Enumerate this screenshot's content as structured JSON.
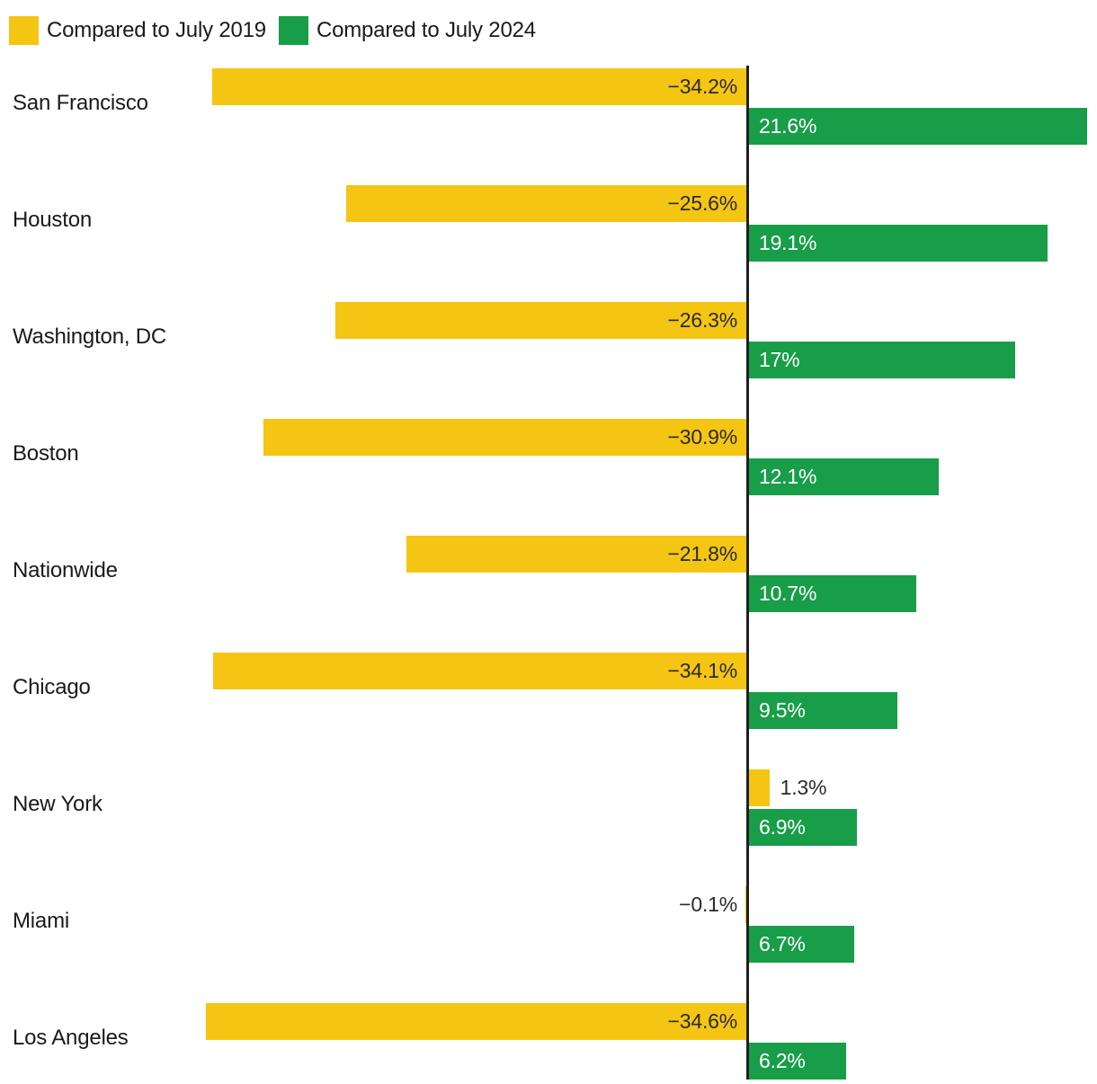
{
  "colors": {
    "yellow": "#F5C513",
    "green": "#189E48",
    "axis": "#1F1F1F",
    "city_text": "#1A1A1A",
    "value_dark": "#2B2B2B",
    "value_light": "#FFFFFF",
    "background": "#FFFFFF"
  },
  "chart_data": {
    "type": "bar",
    "orientation": "horizontal",
    "value_unit": "percent",
    "zero_axis_line": true,
    "legend_position": "top-left",
    "grid": false,
    "xlim": [
      -34.6,
      21.6
    ],
    "series": [
      {
        "name": "Compared to July 2019",
        "color": "#F5C513",
        "key": "jul2019"
      },
      {
        "name": "Compared to July 2024",
        "color": "#189E48",
        "key": "jul2024"
      }
    ],
    "categories": [
      "San Francisco",
      "Houston",
      "Washington, DC",
      "Boston",
      "Nationwide",
      "Chicago",
      "New York",
      "Miami",
      "Los Angeles"
    ],
    "rows": [
      {
        "city": "San Francisco",
        "jul2019": -34.2,
        "jul2019_label": "−34.2%",
        "jul2024": 21.6,
        "jul2024_label": "21.6%"
      },
      {
        "city": "Houston",
        "jul2019": -25.6,
        "jul2019_label": "−25.6%",
        "jul2024": 19.1,
        "jul2024_label": "19.1%"
      },
      {
        "city": "Washington, DC",
        "jul2019": -26.3,
        "jul2019_label": "−26.3%",
        "jul2024": 17,
        "jul2024_label": "17%"
      },
      {
        "city": "Boston",
        "jul2019": -30.9,
        "jul2019_label": "−30.9%",
        "jul2024": 12.1,
        "jul2024_label": "12.1%"
      },
      {
        "city": "Nationwide",
        "jul2019": -21.8,
        "jul2019_label": "−21.8%",
        "jul2024": 10.7,
        "jul2024_label": "10.7%"
      },
      {
        "city": "Chicago",
        "jul2019": -34.1,
        "jul2019_label": "−34.1%",
        "jul2024": 9.5,
        "jul2024_label": "9.5%"
      },
      {
        "city": "New York",
        "jul2019": 1.3,
        "jul2019_label": "1.3%",
        "jul2024": 6.9,
        "jul2024_label": "6.9%"
      },
      {
        "city": "Miami",
        "jul2019": -0.1,
        "jul2019_label": "−0.1%",
        "jul2024": 6.7,
        "jul2024_label": "6.7%"
      },
      {
        "city": "Los Angeles",
        "jul2019": -34.6,
        "jul2019_label": "−34.6%",
        "jul2024": 6.2,
        "jul2024_label": "6.2%"
      }
    ]
  }
}
